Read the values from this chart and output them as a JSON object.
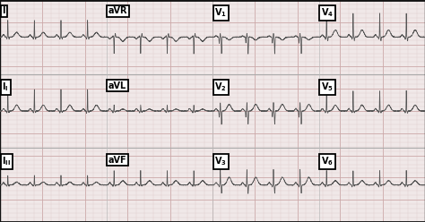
{
  "bg_color": "#f0e8e8",
  "grid_minor_color": "#dcc8c8",
  "grid_major_color": "#cca8a8",
  "ecg_color": "#555555",
  "label_bg": "#ffffff",
  "label_text_color": "#000000",
  "border_color": "#000000",
  "top_border_color": "#111111",
  "figsize": [
    4.74,
    2.48
  ],
  "dpi": 100,
  "row_sep": [
    0.333,
    0.667
  ],
  "col_sep": [
    0.25,
    0.5,
    0.75
  ],
  "label_configs": [
    {
      "text": "I",
      "sub": "",
      "col": 0,
      "row": 0
    },
    {
      "text": "aVR",
      "sub": "",
      "col": 1,
      "row": 0
    },
    {
      "text": "V",
      "sub": "1",
      "col": 2,
      "row": 0
    },
    {
      "text": "V",
      "sub": "4",
      "col": 3,
      "row": 0
    },
    {
      "text": "I",
      "sub": "I",
      "col": 0,
      "row": 1
    },
    {
      "text": "aVL",
      "sub": "",
      "col": 1,
      "row": 1
    },
    {
      "text": "V",
      "sub": "2",
      "col": 2,
      "row": 1
    },
    {
      "text": "V",
      "sub": "5",
      "col": 3,
      "row": 1
    },
    {
      "text": "I",
      "sub": "II",
      "col": 0,
      "row": 2
    },
    {
      "text": "aVF",
      "sub": "",
      "col": 1,
      "row": 2
    },
    {
      "text": "V",
      "sub": "3",
      "col": 2,
      "row": 2
    },
    {
      "text": "V",
      "sub": "6",
      "col": 3,
      "row": 2
    }
  ],
  "lead_types": [
    [
      "i",
      "avr",
      "v1",
      "v4"
    ],
    [
      "ii",
      "avl",
      "v2",
      "v5"
    ],
    [
      "iii",
      "avf",
      "v3",
      "v6"
    ]
  ]
}
